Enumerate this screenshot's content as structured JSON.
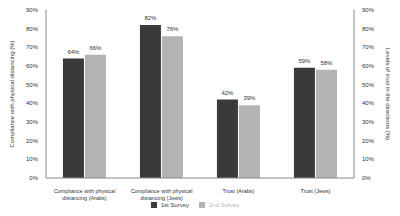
{
  "chart_data": {
    "type": "bar",
    "categories": [
      "Compliance with physical distancing (Arabs)",
      "Compliance with physical distancing (Jews)",
      "Trust (Arabs)",
      "Trust (Jews)"
    ],
    "series": [
      {
        "name": "1st Survey",
        "color": "#3a3a3a",
        "values": [
          64,
          82,
          42,
          59
        ],
        "value_labels": [
          "64%",
          "82%",
          "42%",
          "59%"
        ]
      },
      {
        "name": "2nd Survey",
        "color": "#b3b3b3",
        "values": [
          66,
          76,
          39,
          58
        ],
        "value_labels": [
          "66%",
          "76%",
          "39%",
          "58%"
        ]
      }
    ],
    "y_label": "Compliance with physical distancing (%)",
    "y2_label": "Levels of trust in the directions (%)",
    "ylim": [
      0,
      90
    ],
    "yticks": [
      {
        "value": 0,
        "label": "0%"
      },
      {
        "value": 10,
        "label": "10%"
      },
      {
        "value": 20,
        "label": "20%"
      },
      {
        "value": 30,
        "label": "30%"
      },
      {
        "value": 40,
        "label": "40%"
      },
      {
        "value": 50,
        "label": "50%"
      },
      {
        "value": 60,
        "label": "60%"
      },
      {
        "value": 70,
        "label": "70%"
      },
      {
        "value": 80,
        "label": "80%"
      },
      {
        "value": 90,
        "label": "90%"
      }
    ],
    "y2lim": [
      0,
      90
    ],
    "y2ticks": [
      {
        "value": 0,
        "label": "0%"
      },
      {
        "value": 10,
        "label": "10%"
      },
      {
        "value": 20,
        "label": "20%"
      },
      {
        "value": 30,
        "label": "30%"
      },
      {
        "value": 40,
        "label": "40%"
      },
      {
        "value": 50,
        "label": "50%"
      },
      {
        "value": 60,
        "label": "60%"
      },
      {
        "value": 70,
        "label": "70%"
      },
      {
        "value": 80,
        "label": "80%"
      },
      {
        "value": 90,
        "label": "90%"
      }
    ],
    "grid": false,
    "data_labels": true,
    "legend": "bottom"
  }
}
